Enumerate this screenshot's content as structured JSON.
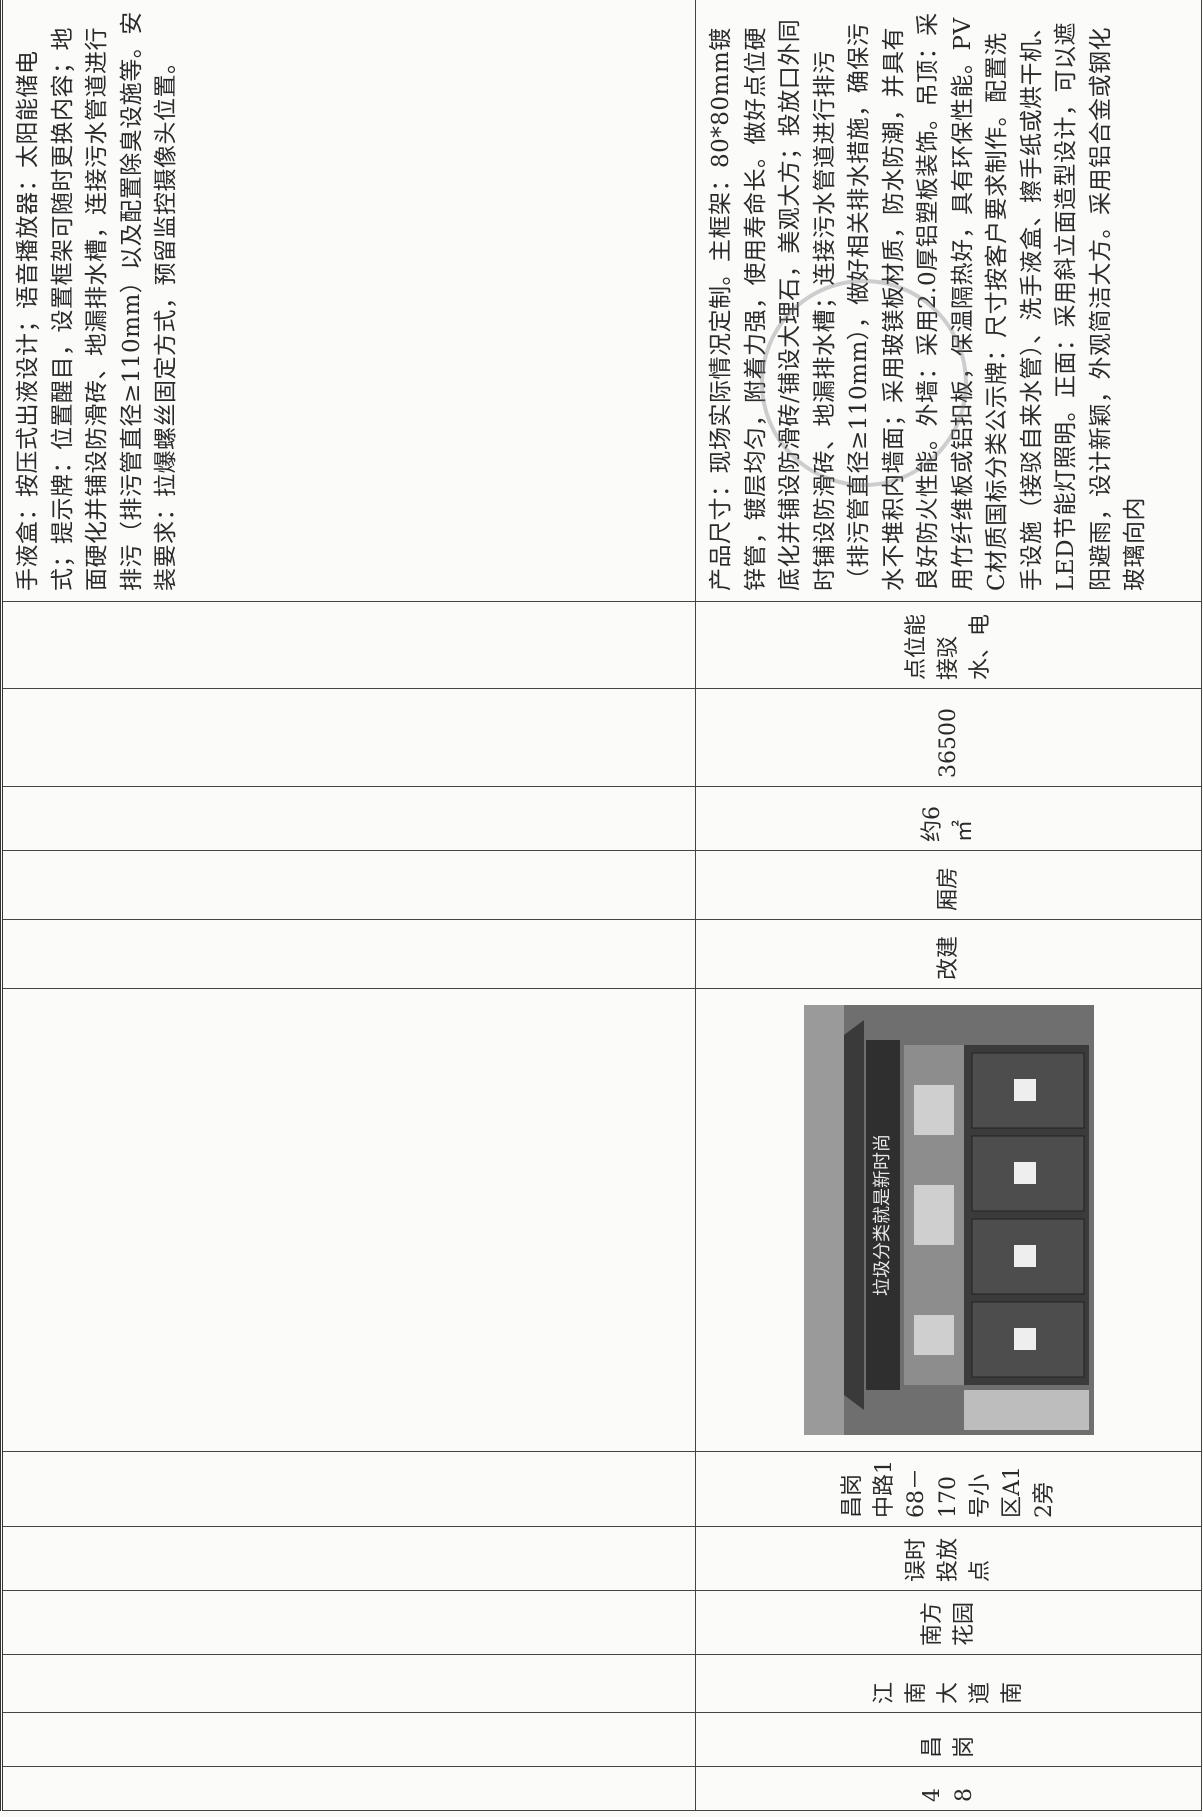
{
  "table": {
    "rows": [
      {
        "description": "手液盒：按压式出液设计；语音播放器：太阳能储电式；提示牌：位置醒目，设置框架可随时更换内容；地面硬化并铺设防滑砖、地漏排水槽，连接污水管道进行排污（排污管直径≥110mm）以及配置除臭设施等。安装要求：拉爆螺丝固定方式，预留监控摄像头位置。"
      },
      {
        "number": "48",
        "street": "昌岗",
        "community": "江南大道南",
        "estate": "南方花园",
        "point_type": "误时投放点",
        "address": "昌岗中路168－170号小区A12旁",
        "photo_caption": "垃圾分类就是新时尚",
        "build_type": "改建",
        "form": "厢房",
        "area": "约6㎡",
        "amount": "36500",
        "remark": "点位能接驳水、电",
        "description": "产品尺寸：现场实际情况定制。主框架：80*80mm镀锌管，镀层均匀，附着力强，使用寿命长。做好点位硬底化并铺设防滑砖/铺设大理石，美观大方；投放口外同时铺设防滑砖、地漏排水槽；连接污水管道进行排污（排污管直径≥110mm），做好相关排水措施，确保污水不堆积内墙面；采用玻镁板材质，防水防潮，并具有良好防火性能。外墙：采用2.0厚铝塑板装饰。吊顶：采用竹纤维板或铝扣板，保温隔热好，具有环保性能。PVC材质国标分类公示牌：尺寸按客户要求制作。配置洗手设施（接驳自来水管）、洗手液盒、擦手纸或烘干机、LED节能灯照明。正面：采用斜立面造型设计，可以遮阳避雨，设计新颖，外观简洁大方。采用铝合金或钢化玻璃向内"
      }
    ]
  }
}
